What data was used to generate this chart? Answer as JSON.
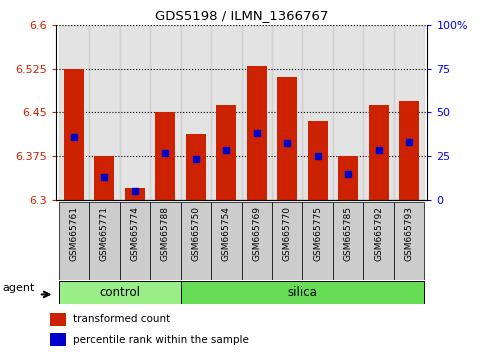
{
  "title": "GDS5198 / ILMN_1366767",
  "samples": [
    "GSM665761",
    "GSM665771",
    "GSM665774",
    "GSM665788",
    "GSM665750",
    "GSM665754",
    "GSM665769",
    "GSM665770",
    "GSM665775",
    "GSM665785",
    "GSM665792",
    "GSM665793"
  ],
  "n_control": 4,
  "bar_tops": [
    6.525,
    6.375,
    6.32,
    6.45,
    6.413,
    6.462,
    6.53,
    6.51,
    6.435,
    6.375,
    6.462,
    6.47
  ],
  "blue_vals": [
    6.408,
    6.34,
    6.315,
    6.38,
    6.37,
    6.385,
    6.415,
    6.398,
    6.375,
    6.345,
    6.385,
    6.4
  ],
  "ymin": 6.3,
  "ymax": 6.6,
  "yticks_left": [
    6.3,
    6.375,
    6.45,
    6.525,
    6.6
  ],
  "yticks_right": [
    0,
    25,
    50,
    75,
    100
  ],
  "bar_color": "#cc2200",
  "blue_color": "#0000cc",
  "control_color": "#99ee88",
  "silica_color": "#66dd55",
  "tick_box_color": "#cccccc",
  "label_control": "control",
  "label_silica": "silica",
  "legend_red": "transformed count",
  "legend_blue": "percentile rank within the sample",
  "agent_label": "agent"
}
